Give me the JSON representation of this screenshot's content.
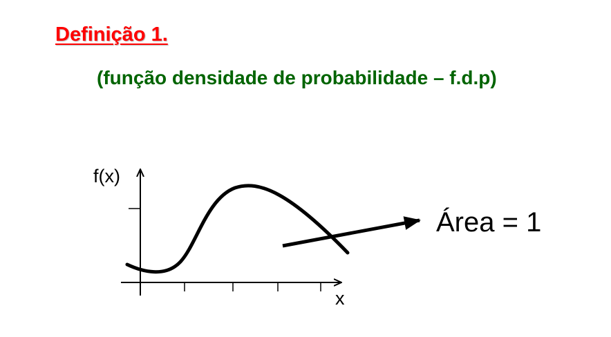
{
  "slide": {
    "title": "Definição 1.",
    "subtitle": "(função densidade de probabilidade – f.d.p)"
  },
  "diagram": {
    "y_axis_label": "f(x)",
    "x_axis_label": "x",
    "annotation": "Área = 1"
  },
  "colors": {
    "title": "#ff0000",
    "subtitle": "#006400",
    "drawing": "#000000"
  }
}
